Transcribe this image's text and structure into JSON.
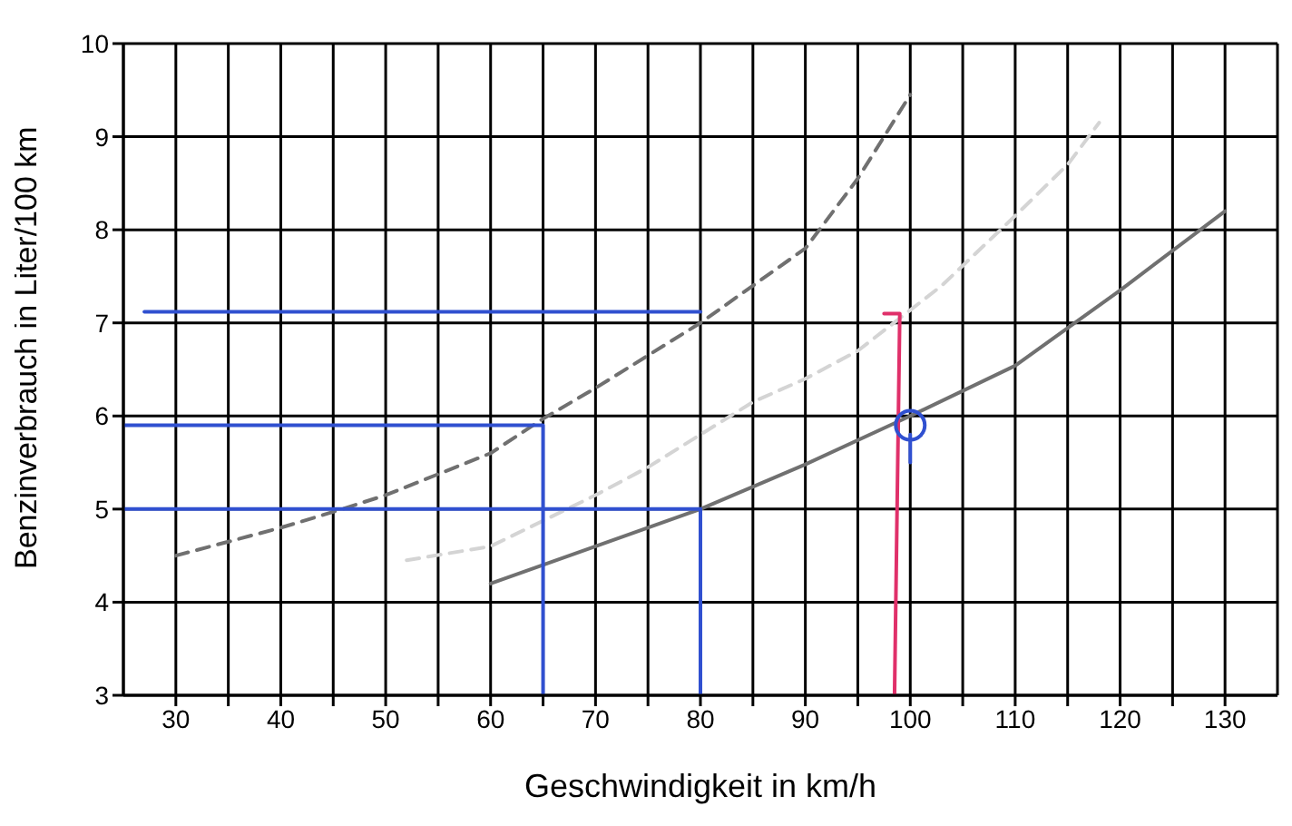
{
  "chart_data": {
    "type": "line",
    "xlabel": "Geschwindigkeit in km/h",
    "ylabel": "Benzinverbrauch in Liter/100 km",
    "xlim": [
      25,
      135
    ],
    "xticks": [
      30,
      {
        "value": 35,
        "label": null
      },
      40,
      {
        "value": 45,
        "label": null
      },
      50,
      {
        "value": 55,
        "label": null
      },
      60,
      {
        "value": 65,
        "label": null
      },
      70,
      {
        "value": 75,
        "label": null
      },
      80,
      {
        "value": 85,
        "label": null
      },
      90,
      {
        "value": 95,
        "label": null
      },
      100,
      {
        "value": 105,
        "label": null
      },
      110,
      {
        "value": 115,
        "label": null
      },
      120,
      {
        "value": 125,
        "label": null
      },
      130
    ],
    "ylim": [
      3,
      10
    ],
    "yticks": [
      3,
      4,
      5,
      6,
      7,
      8,
      9,
      10
    ],
    "grid": true,
    "marker": "none",
    "series": [
      {
        "color": "#707070",
        "line_style": "solid",
        "x": [
          60,
          65,
          70,
          80,
          90,
          100,
          110,
          120,
          130
        ],
        "values": [
          4.2,
          4.4,
          4.6,
          5.0,
          5.48,
          6.0,
          6.54,
          7.35,
          8.2
        ]
      },
      {
        "type": "line",
        "color": "#707070",
        "line_style": "dashed",
        "x": [
          30,
          40,
          45,
          50,
          60,
          65,
          70,
          80,
          90,
          95,
          100
        ],
        "values": [
          4.5,
          4.8,
          4.97,
          5.15,
          5.6,
          5.97,
          6.3,
          7.0,
          7.8,
          8.55,
          9.45
        ]
      },
      {
        "type": "line",
        "color": "#d4d4d4",
        "line_style": "dashed",
        "x": [
          52,
          60,
          70,
          75,
          80,
          85,
          90,
          95,
          103,
          110,
          115,
          118
        ],
        "values": [
          4.45,
          4.6,
          5.15,
          5.45,
          5.8,
          6.15,
          6.4,
          6.7,
          7.4,
          8.15,
          8.7,
          9.15
        ]
      },
      {
        "type": "line",
        "color": "#3050d0",
        "line_style": "solid",
        "x": [
          27,
          80
        ],
        "values": [
          7.12,
          7.12
        ]
      },
      {
        "type": "line",
        "color": "#3050d0",
        "line_style": "solid",
        "x": [
          65,
          65,
          25
        ],
        "values": [
          3,
          5.9,
          5.9
        ]
      },
      {
        "type": "line",
        "color": "#3050d0",
        "line_style": "solid",
        "x": [
          80,
          25
        ],
        "values": [
          5,
          5
        ]
      },
      {
        "type": "line",
        "color": "#3050d0",
        "line_style": "solid",
        "x": [
          80,
          80
        ],
        "values": [
          3,
          5
        ]
      },
      {
        "type": "line",
        "color": "#e0306a",
        "line_style": "solid",
        "x": [
          98.5,
          99,
          97.5
        ],
        "values": [
          3,
          7.1,
          7.1
        ]
      },
      {
        "type": "line",
        "color": "#3050d0",
        "line_style": "solid",
        "x": [
          100,
          100
        ],
        "values": [
          5.8,
          5.5
        ]
      },
      {
        "type": "scatter",
        "color": "#3050d0",
        "marker": "circle",
        "x": [
          100
        ],
        "values": [
          5.9
        ]
      }
    ]
  }
}
